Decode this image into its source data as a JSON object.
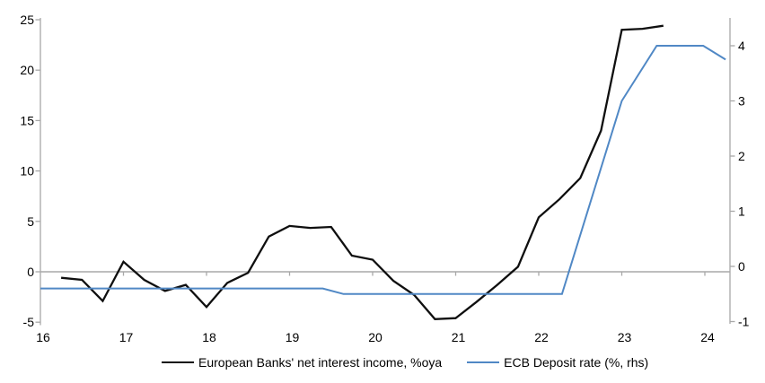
{
  "chart_data": {
    "type": "line",
    "title": "",
    "grid": "zero-line-only",
    "legend_position": "bottom",
    "x_axis": {
      "tick_labels": [
        "16",
        "17",
        "18",
        "19",
        "20",
        "21",
        "22",
        "23",
        "24"
      ],
      "range": [
        16,
        24.3
      ]
    },
    "left_y_axis": {
      "tick_labels": [
        25,
        20,
        15,
        10,
        5,
        0,
        -5
      ],
      "range": [
        -5,
        25
      ]
    },
    "right_y_axis": {
      "tick_labels": [
        4,
        3,
        2,
        1,
        0,
        -1
      ],
      "range": [
        -1,
        4.6
      ]
    },
    "series": [
      {
        "name": "European Banks' net interest income, %oya",
        "axis": "left",
        "color": "#0f0f0f",
        "x": [
          16.25,
          16.5,
          16.75,
          17.0,
          17.25,
          17.5,
          17.75,
          18.0,
          18.25,
          18.5,
          18.75,
          19.0,
          19.25,
          19.5,
          19.75,
          20.0,
          20.25,
          20.5,
          20.75,
          21.0,
          21.25,
          21.5,
          21.75,
          22.0,
          22.25,
          22.5,
          22.75,
          23.0,
          23.25,
          23.5
        ],
        "values": [
          -0.6,
          -0.8,
          -2.9,
          1.0,
          -0.8,
          -1.9,
          -1.3,
          -3.5,
          -1.1,
          -0.1,
          3.5,
          4.55,
          4.35,
          4.45,
          1.6,
          1.2,
          -0.9,
          -2.3,
          -4.7,
          -4.6,
          -3.0,
          -1.3,
          0.5,
          5.4,
          7.2,
          9.3,
          14.0,
          24.0,
          24.1,
          24.4
        ]
      },
      {
        "name": "ECB Deposit rate (%, rhs)",
        "axis": "right",
        "color": "#5088c5",
        "x": [
          16.0,
          19.4,
          19.65,
          22.28,
          23.0,
          23.42,
          23.98,
          24.25
        ],
        "values": [
          -0.4,
          -0.4,
          -0.5,
          -0.5,
          3.0,
          4.0,
          4.0,
          3.75
        ]
      }
    ]
  },
  "colors": {
    "background": "#ffffff",
    "axis": "#a8a8a8",
    "text": "#000000"
  }
}
